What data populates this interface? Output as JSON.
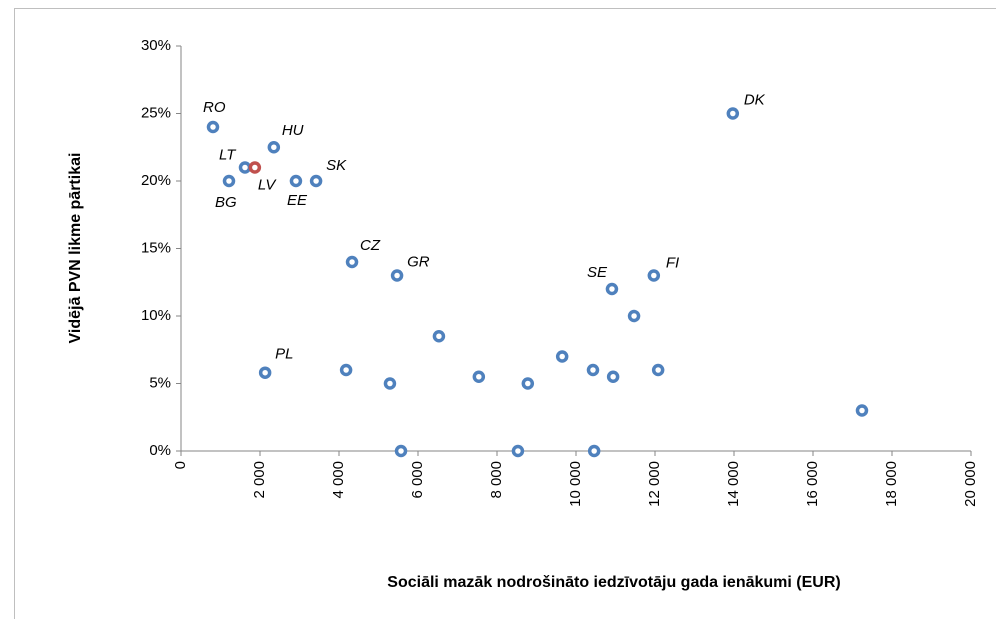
{
  "chart_data": {
    "type": "scatter",
    "x_label": "Sociāli mazāk nodrošināto iedzīvotāju gada ienākumi (EUR)",
    "y_label": "Vidējā PVN likme pārtikai",
    "x": [
      810,
      1620,
      1215,
      1870,
      2350,
      2910,
      3420,
      4330,
      5470,
      2130,
      4180,
      5290,
      5570,
      6530,
      7540,
      8530,
      8780,
      9650,
      10430,
      10460,
      10910,
      10940,
      11470,
      11970,
      12080,
      13970,
      17240
    ],
    "values": [
      24,
      21,
      20,
      21,
      22.5,
      20,
      20,
      14,
      13,
      5.8,
      6,
      5,
      0,
      8.5,
      5.5,
      0,
      5,
      7,
      6,
      0,
      12,
      5.5,
      10,
      13,
      6,
      25,
      3
    ],
    "point_labels": [
      "RO",
      "LT",
      "BG",
      "LV",
      "HU",
      "EE",
      "SK",
      "CZ",
      "GR",
      "PL",
      null,
      null,
      null,
      null,
      null,
      null,
      null,
      null,
      null,
      null,
      "SE",
      null,
      null,
      "FI",
      null,
      "DK",
      null
    ],
    "colors": [
      "#4f81bd",
      "#4f81bd",
      "#4f81bd",
      "#c0504d",
      "#4f81bd",
      "#4f81bd",
      "#4f81bd",
      "#4f81bd",
      "#4f81bd",
      "#4f81bd",
      "#4f81bd",
      "#4f81bd",
      "#4f81bd",
      "#4f81bd",
      "#4f81bd",
      "#4f81bd",
      "#4f81bd",
      "#4f81bd",
      "#4f81bd",
      "#4f81bd",
      "#4f81bd",
      "#4f81bd",
      "#4f81bd",
      "#4f81bd",
      "#4f81bd",
      "#4f81bd",
      "#4f81bd"
    ],
    "xlim": [
      0,
      20000
    ],
    "xticks": [
      0,
      {
        "value": 2000,
        "label": "2 000"
      },
      {
        "value": 4000,
        "label": "4 000"
      },
      {
        "value": 6000,
        "label": "6 000"
      },
      {
        "value": 8000,
        "label": "8 000"
      },
      {
        "value": 10000,
        "label": "10 000"
      },
      {
        "value": 12000,
        "label": "12 000"
      },
      {
        "value": 14000,
        "label": "14 000"
      },
      {
        "value": 16000,
        "label": "16 000"
      },
      {
        "value": 18000,
        "label": "18 000"
      },
      {
        "value": 20000,
        "label": "20 000"
      }
    ],
    "ylim": [
      0,
      30
    ],
    "yticks": [
      {
        "value": 0,
        "label": "0%"
      },
      {
        "value": 5,
        "label": "5%"
      },
      {
        "value": 10,
        "label": "10%"
      },
      {
        "value": 15,
        "label": "15%"
      },
      {
        "value": 20,
        "label": "20%"
      },
      {
        "value": 25,
        "label": "25%"
      },
      {
        "value": 30,
        "label": "30%"
      }
    ],
    "grid": false
  }
}
